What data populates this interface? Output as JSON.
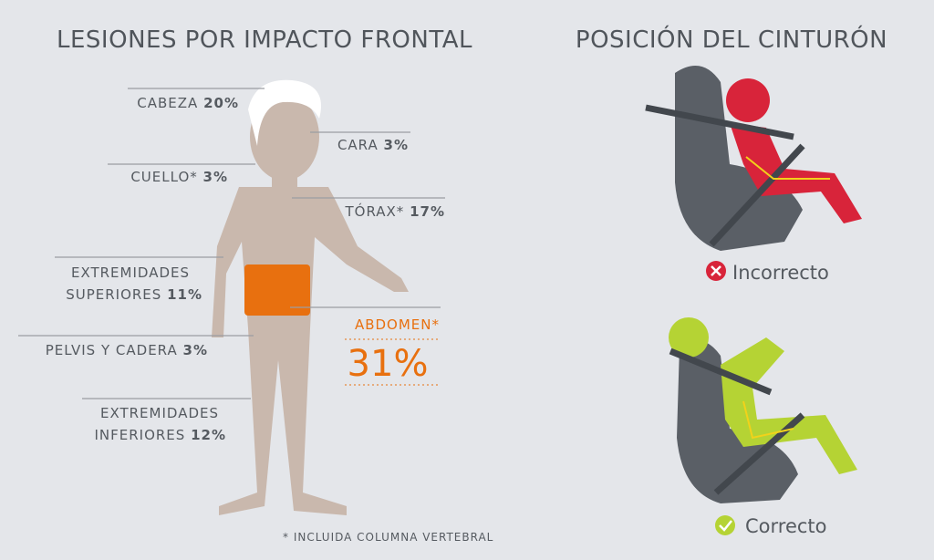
{
  "left": {
    "title": "LESIONES POR IMPACTO FRONTAL",
    "injuries": [
      {
        "name": "CABEZA",
        "value": "20%"
      },
      {
        "name": "CARA",
        "value": "3%"
      },
      {
        "name": "CUELLO*",
        "value": "3%"
      },
      {
        "name": "TÓRAX*",
        "value": "17%"
      },
      {
        "name": [
          "EXTREMIDADES",
          "SUPERIORES"
        ],
        "value": "11%"
      },
      {
        "name": "ABDOMEN*",
        "value": "31%"
      },
      {
        "name": "PELVIS Y CADERA",
        "value": "3%"
      },
      {
        "name": [
          "EXTREMIDADES",
          "INFERIORES"
        ],
        "value": "12%"
      }
    ],
    "footnote": "* INCLUIDA COLUMNA VERTEBRAL"
  },
  "right": {
    "title": "POSICIÓN DEL CINTURÓN",
    "states": [
      {
        "label": "Incorrecto"
      },
      {
        "label": "Correcto"
      }
    ]
  }
}
